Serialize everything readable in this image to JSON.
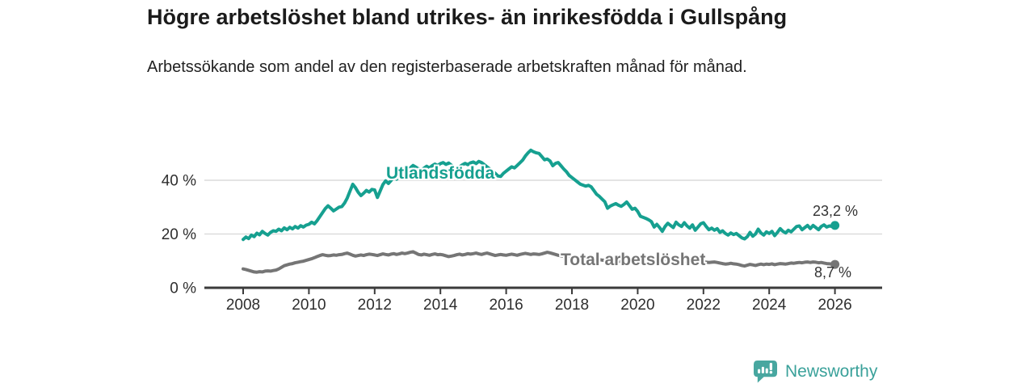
{
  "header": {
    "title": "Högre arbetslöshet bland utrikes- än inrikesfödda i Gullspång",
    "subtitle": "Arbetssökande som andel av den registerbaserade arbetskraften månad för månad."
  },
  "footer": {
    "brand": "Newsworthy",
    "brand_color": "#3aa19a",
    "logo_icon": "speech-bubble-bar-chart-icon"
  },
  "chart_data": {
    "type": "line",
    "title": "Högre arbetslöshet bland utrikes- än inrikesfödda i Gullspång",
    "subtitle": "Arbetssökande som andel av den registerbaserade arbetskraften månad för månad.",
    "grid": "horizontal",
    "legend_position": "inline-labels",
    "x_unit": "year-month",
    "x_start_year": 2008,
    "x_step_months": 1,
    "x_axis": {
      "tick_years": [
        2008,
        2010,
        2012,
        2014,
        2016,
        2018,
        2020,
        2022,
        2024,
        2026
      ]
    },
    "y_axis": {
      "ticks": [
        {
          "value": 0,
          "label": "0 %"
        },
        {
          "value": 20,
          "label": "20 %"
        },
        {
          "value": 40,
          "label": "40 %"
        }
      ],
      "gridlines": [
        20,
        40
      ],
      "ylim": [
        0,
        55
      ]
    },
    "series": [
      {
        "name": "Utlandsfödda",
        "color": "#16a090",
        "end_label": "23,2 %",
        "end_value": 23.2,
        "values": [
          18.0,
          18.9,
          18.3,
          19.6,
          19.0,
          20.3,
          19.7,
          21.0,
          20.2,
          19.6,
          20.6,
          21.2,
          21.0,
          21.8,
          21.2,
          22.3,
          21.6,
          22.5,
          21.9,
          22.8,
          22.2,
          23.1,
          22.6,
          23.3,
          23.6,
          24.4,
          23.8,
          25.0,
          26.5,
          28.0,
          29.5,
          30.5,
          29.6,
          28.6,
          29.3,
          30.0,
          30.2,
          31.5,
          33.4,
          36.0,
          38.5,
          37.2,
          35.5,
          34.3,
          35.2,
          36.2,
          35.6,
          36.6,
          36.4,
          33.6,
          36.0,
          38.4,
          39.8,
          38.8,
          39.9,
          41.2,
          40.4,
          41.5,
          42.5,
          43.0,
          43.4,
          44.6,
          45.5,
          44.9,
          44.2,
          43.8,
          44.5,
          45.2,
          44.6,
          45.4,
          46.0,
          45.5,
          46.2,
          46.6,
          45.9,
          46.4,
          45.6,
          44.8,
          44.3,
          45.0,
          45.7,
          46.3,
          45.8,
          46.5,
          46.8,
          46.2,
          47.0,
          46.6,
          45.8,
          45.0,
          44.2,
          43.4,
          42.6,
          41.6,
          41.4,
          42.6,
          43.4,
          44.2,
          45.0,
          44.6,
          45.5,
          46.5,
          47.5,
          49.0,
          50.2,
          51.2,
          50.6,
          50.2,
          50.0,
          48.8,
          47.6,
          47.9,
          47.2,
          45.4,
          46.3,
          46.6,
          45.4,
          44.2,
          43.2,
          41.8,
          41.0,
          40.2,
          39.4,
          38.6,
          38.2,
          37.8,
          38.1,
          37.6,
          36.2,
          34.8,
          34.0,
          33.0,
          32.0,
          29.6,
          30.4,
          30.9,
          31.3,
          30.7,
          30.3,
          31.0,
          31.9,
          30.6,
          29.2,
          29.6,
          28.4,
          26.6,
          26.2,
          25.8,
          25.3,
          24.6,
          22.6,
          23.6,
          22.4,
          21.0,
          22.8,
          24.0,
          23.2,
          22.4,
          24.4,
          23.4,
          22.8,
          24.2,
          23.0,
          22.2,
          23.4,
          21.4,
          22.6,
          23.8,
          24.2,
          22.8,
          21.6,
          22.2,
          21.4,
          22.0,
          20.6,
          21.2,
          20.2,
          19.6,
          20.4,
          19.8,
          20.2,
          19.4,
          18.6,
          18.2,
          19.0,
          20.6,
          19.2,
          20.0,
          21.8,
          20.4,
          19.6,
          20.8,
          20.2,
          21.0,
          19.4,
          20.6,
          22.0,
          21.0,
          20.4,
          21.4,
          20.8,
          21.8,
          22.8,
          23.0,
          21.6,
          22.4,
          23.2,
          22.0,
          23.2,
          22.4,
          21.6,
          22.8,
          23.4,
          22.6,
          23.0,
          22.8,
          23.2
        ]
      },
      {
        "name": "Total arbetslöshet",
        "color": "#757575",
        "end_label": "8,7 %",
        "end_value": 8.7,
        "values": [
          7.0,
          6.8,
          6.5,
          6.2,
          5.9,
          5.8,
          6.0,
          5.9,
          6.2,
          6.3,
          6.2,
          6.4,
          6.6,
          7.0,
          7.6,
          8.2,
          8.5,
          8.8,
          9.0,
          9.3,
          9.5,
          9.7,
          9.9,
          10.2,
          10.5,
          10.8,
          11.2,
          11.6,
          12.0,
          12.3,
          12.1,
          11.9,
          12.0,
          12.2,
          12.1,
          12.3,
          12.4,
          12.7,
          12.9,
          12.5,
          12.1,
          11.8,
          12.0,
          12.2,
          12.0,
          12.3,
          12.5,
          12.4,
          12.2,
          12.0,
          12.3,
          12.6,
          12.4,
          12.2,
          12.5,
          12.7,
          12.4,
          12.6,
          12.9,
          12.7,
          12.9,
          13.2,
          13.4,
          12.9,
          12.4,
          12.2,
          12.5,
          12.3,
          12.1,
          12.4,
          12.6,
          12.3,
          12.4,
          12.2,
          11.9,
          11.6,
          11.8,
          12.0,
          12.3,
          12.5,
          12.2,
          12.4,
          12.7,
          12.5,
          12.7,
          12.9,
          12.6,
          12.4,
          12.7,
          12.9,
          12.6,
          12.3,
          12.0,
          12.2,
          12.4,
          12.2,
          12.1,
          12.3,
          12.5,
          12.3,
          12.1,
          12.4,
          12.6,
          12.8,
          12.6,
          12.4,
          12.6,
          12.5,
          12.4,
          12.6,
          12.9,
          13.2,
          13.0,
          12.7,
          12.4,
          12.1,
          11.9,
          11.7,
          11.8,
          11.6,
          11.5,
          11.3,
          11.1,
          10.9,
          10.8,
          10.7,
          10.8,
          10.6,
          10.5,
          10.4,
          10.5,
          10.3,
          10.2,
          10.1,
          10.0,
          10.1,
          10.0,
          9.9,
          9.8,
          9.9,
          10.0,
          9.9,
          9.8,
          9.9,
          10.0,
          10.1,
          10.3,
          10.5,
          10.4,
          10.3,
          10.2,
          10.1,
          10.0,
          9.9,
          9.8,
          9.9,
          9.8,
          9.9,
          10.0,
          9.9,
          9.8,
          9.7,
          9.6,
          9.5,
          9.4,
          9.3,
          9.4,
          9.5,
          9.6,
          9.5,
          9.4,
          9.5,
          9.6,
          9.4,
          9.2,
          9.0,
          8.8,
          8.9,
          9.1,
          8.9,
          8.8,
          8.6,
          8.3,
          8.1,
          8.4,
          8.7,
          8.5,
          8.3,
          8.6,
          8.8,
          8.6,
          8.8,
          8.7,
          8.9,
          8.6,
          8.8,
          9.0,
          8.9,
          8.8,
          9.0,
          9.2,
          9.1,
          9.3,
          9.4,
          9.3,
          9.5,
          9.6,
          9.4,
          9.6,
          9.5,
          9.3,
          9.4,
          9.2,
          9.0,
          8.9,
          8.8,
          8.7
        ]
      }
    ],
    "style": {
      "gridline_color": "#dcdcdc",
      "axis_color": "#3b3b3b",
      "tick_label_color": "#2e2e2e",
      "line_width": 4,
      "end_dot_radius": 5.5
    }
  }
}
